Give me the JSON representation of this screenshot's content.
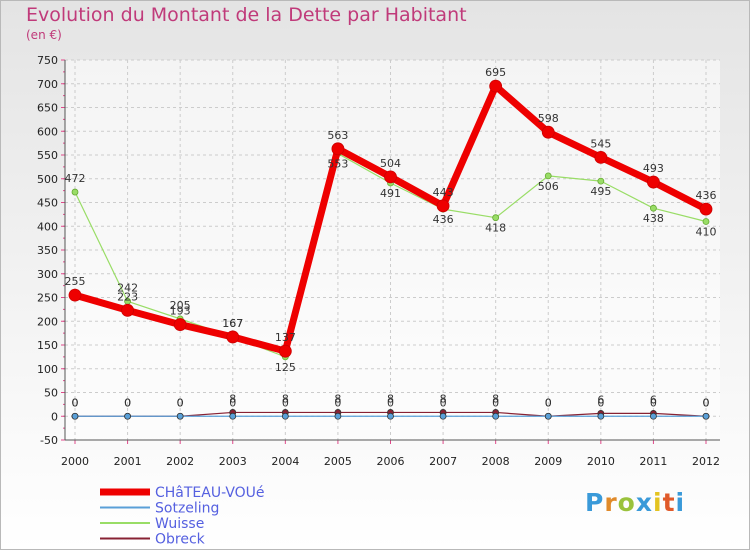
{
  "logo_text": "Proxiti",
  "chart_data": {
    "type": "line",
    "title": "Evolution du Montant de la Dette par Habitant",
    "subtitle": "(en €)",
    "x": [
      "2000",
      "2001",
      "2002",
      "2003",
      "2004",
      "2005",
      "2006",
      "2007",
      "2008",
      "2009",
      "2010",
      "2011",
      "2012"
    ],
    "ylim": [
      -50,
      750
    ],
    "yticks": [
      -50,
      0,
      50,
      100,
      150,
      200,
      250,
      300,
      350,
      400,
      450,
      500,
      550,
      600,
      650,
      700,
      750
    ],
    "grid": true,
    "legend_position": "bottom-left",
    "series": [
      {
        "name": "CHâTEAU-VOUé",
        "color": "#ee0000",
        "values": [
          255,
          223,
          193,
          167,
          137,
          563,
          504,
          443,
          695,
          598,
          545,
          493,
          436
        ]
      },
      {
        "name": "Sotzeling",
        "color": "#5aa0d8",
        "values": [
          0,
          0,
          0,
          0,
          0,
          0,
          0,
          0,
          0,
          0,
          0,
          0,
          0
        ]
      },
      {
        "name": "Wuisse",
        "color": "#99dd66",
        "values": [
          472,
          242,
          205,
          167,
          125,
          553,
          491,
          436,
          418,
          506,
          495,
          438,
          410
        ]
      },
      {
        "name": "Obreck",
        "color": "#882233",
        "values": [
          0,
          0,
          0,
          8,
          8,
          8,
          8,
          8,
          8,
          0,
          6,
          6,
          0
        ]
      }
    ]
  }
}
